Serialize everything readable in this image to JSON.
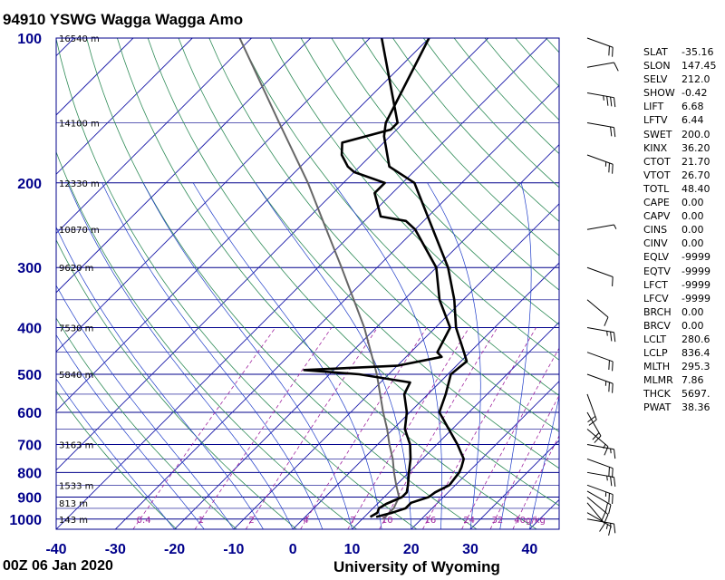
{
  "title": "94910 YSWG Wagga Wagga Amo",
  "footer": {
    "time": "00Z 06 Jan 2020",
    "source": "University of Wyoming"
  },
  "chart_data": {
    "type": "skew-t log-p",
    "pressure_ticks": [
      100,
      200,
      300,
      400,
      500,
      600,
      700,
      800,
      900,
      1000
    ],
    "temperature_ticks": [
      -40,
      -30,
      -20,
      -10,
      0,
      10,
      20,
      30,
      40
    ],
    "height_labels": [
      {
        "p": 100,
        "label": "16540 m"
      },
      {
        "p": 150,
        "label": "14100 m"
      },
      {
        "p": 200,
        "label": "12330 m"
      },
      {
        "p": 250,
        "label": "10870 m"
      },
      {
        "p": 300,
        "label": "9620 m"
      },
      {
        "p": 400,
        "label": "7530 m"
      },
      {
        "p": 500,
        "label": "5840 m"
      },
      {
        "p": 700,
        "label": "3163 m"
      },
      {
        "p": 850,
        "label": "1533 m"
      },
      {
        "p": 925,
        "label": "813 m"
      },
      {
        "p": 1000,
        "label": "143 m"
      }
    ],
    "mixing_ratio_labels": [
      "0.4",
      "1",
      "2",
      "4",
      "7",
      "10",
      "16",
      "24",
      "32",
      "40g/kg"
    ],
    "temperature_profile": [
      {
        "p": 990,
        "t": 12.0
      },
      {
        "p": 970,
        "t": 14.0
      },
      {
        "p": 950,
        "t": 15.5
      },
      {
        "p": 925,
        "t": 15.5
      },
      {
        "p": 900,
        "t": 17.5
      },
      {
        "p": 880,
        "t": 17.8
      },
      {
        "p": 850,
        "t": 19.0
      },
      {
        "p": 800,
        "t": 18.5
      },
      {
        "p": 780,
        "t": 18.0
      },
      {
        "p": 750,
        "t": 17.0
      },
      {
        "p": 700,
        "t": 13.5
      },
      {
        "p": 600,
        "t": 5.0
      },
      {
        "p": 550,
        "t": 3.0
      },
      {
        "p": 500,
        "t": 0.5
      },
      {
        "p": 470,
        "t": 1.0
      },
      {
        "p": 450,
        "t": -1.0
      },
      {
        "p": 400,
        "t": -6.5
      },
      {
        "p": 350,
        "t": -11.5
      },
      {
        "p": 300,
        "t": -18.0
      },
      {
        "p": 250,
        "t": -27.0
      },
      {
        "p": 200,
        "t": -38.0
      },
      {
        "p": 185,
        "t": -45.0
      },
      {
        "p": 160,
        "t": -51.0
      },
      {
        "p": 150,
        "t": -53.0
      },
      {
        "p": 100,
        "t": -60.0
      }
    ],
    "dewpoint_profile": [
      {
        "p": 990,
        "t": 11.0
      },
      {
        "p": 970,
        "t": 11.5
      },
      {
        "p": 950,
        "t": 11.0
      },
      {
        "p": 930,
        "t": 11.5
      },
      {
        "p": 900,
        "t": 13.0
      },
      {
        "p": 880,
        "t": 13.0
      },
      {
        "p": 850,
        "t": 12.0
      },
      {
        "p": 800,
        "t": 10.0
      },
      {
        "p": 750,
        "t": 8.0
      },
      {
        "p": 700,
        "t": 5.5
      },
      {
        "p": 650,
        "t": 2.0
      },
      {
        "p": 600,
        "t": -0.5
      },
      {
        "p": 550,
        "t": -4.0
      },
      {
        "p": 520,
        "t": -5.0
      },
      {
        "p": 500,
        "t": -15.0
      },
      {
        "p": 490,
        "t": -25.0
      },
      {
        "p": 480,
        "t": -10.0
      },
      {
        "p": 460,
        "t": -4.0
      },
      {
        "p": 450,
        "t": -5.5
      },
      {
        "p": 400,
        "t": -7.5
      },
      {
        "p": 350,
        "t": -14.0
      },
      {
        "p": 300,
        "t": -20.0
      },
      {
        "p": 250,
        "t": -30.0
      },
      {
        "p": 240,
        "t": -33.0
      },
      {
        "p": 235,
        "t": -38.0
      },
      {
        "p": 210,
        "t": -43.0
      },
      {
        "p": 200,
        "t": -43.0
      },
      {
        "p": 190,
        "t": -50.0
      },
      {
        "p": 185,
        "t": -52.0
      },
      {
        "p": 175,
        "t": -55.0
      },
      {
        "p": 165,
        "t": -57.0
      },
      {
        "p": 155,
        "t": -51.0
      },
      {
        "p": 150,
        "t": -51.0
      },
      {
        "p": 100,
        "t": -68.0
      }
    ],
    "parcel_profile": [
      {
        "p": 1000,
        "t": 13.5
      },
      {
        "p": 950,
        "t": 13.5
      },
      {
        "p": 900,
        "t": 12.5
      },
      {
        "p": 850,
        "t": 10.0
      },
      {
        "p": 800,
        "t": 7.5
      },
      {
        "p": 750,
        "t": 5.0
      },
      {
        "p": 700,
        "t": 2.0
      },
      {
        "p": 650,
        "t": -1.0
      },
      {
        "p": 600,
        "t": -4.5
      },
      {
        "p": 500,
        "t": -12.0
      },
      {
        "p": 400,
        "t": -22.0
      },
      {
        "p": 300,
        "t": -36.0
      },
      {
        "p": 250,
        "t": -45.0
      },
      {
        "p": 200,
        "t": -56.0
      },
      {
        "p": 150,
        "t": -71.0
      },
      {
        "p": 100,
        "t": -92.0
      }
    ],
    "wind_barbs": [
      {
        "p": 1000,
        "dir": 100,
        "spd": 15
      },
      {
        "p": 970,
        "dir": 120,
        "spd": 15
      },
      {
        "p": 925,
        "dir": 140,
        "spd": 10
      },
      {
        "p": 900,
        "dir": 130,
        "spd": 20
      },
      {
        "p": 875,
        "dir": 120,
        "spd": 20
      },
      {
        "p": 850,
        "dir": 110,
        "spd": 25
      },
      {
        "p": 800,
        "dir": 100,
        "spd": 25
      },
      {
        "p": 750,
        "dir": 110,
        "spd": 20
      },
      {
        "p": 700,
        "dir": 100,
        "spd": 15
      },
      {
        "p": 650,
        "dir": 130,
        "spd": 15
      },
      {
        "p": 600,
        "dir": 150,
        "spd": 20
      },
      {
        "p": 550,
        "dir": 160,
        "spd": 20
      },
      {
        "p": 500,
        "dir": 110,
        "spd": 25
      },
      {
        "p": 450,
        "dir": 110,
        "spd": 20
      },
      {
        "p": 400,
        "dir": 100,
        "spd": 25
      },
      {
        "p": 350,
        "dir": 130,
        "spd": 10
      },
      {
        "p": 300,
        "dir": 110,
        "spd": 10
      },
      {
        "p": 250,
        "dir": 80,
        "spd": 5
      },
      {
        "p": 175,
        "dir": 110,
        "spd": 25
      },
      {
        "p": 150,
        "dir": 100,
        "spd": 20
      },
      {
        "p": 130,
        "dir": 100,
        "spd": 35
      },
      {
        "p": 115,
        "dir": 80,
        "spd": 10
      },
      {
        "p": 100,
        "dir": 110,
        "spd": 20
      }
    ]
  },
  "params": [
    {
      "key": "SLAT",
      "value": "-35.16"
    },
    {
      "key": "SLON",
      "value": "147.45"
    },
    {
      "key": "SELV",
      "value": "212.0"
    },
    {
      "key": "SHOW",
      "value": "-0.42"
    },
    {
      "key": "LIFT",
      "value": "6.68"
    },
    {
      "key": "LFTV",
      "value": "6.44"
    },
    {
      "key": "SWET",
      "value": "200.0"
    },
    {
      "key": "KINX",
      "value": "36.20"
    },
    {
      "key": "CTOT",
      "value": "21.70"
    },
    {
      "key": "VTOT",
      "value": "26.70"
    },
    {
      "key": "TOTL",
      "value": "48.40"
    },
    {
      "key": "CAPE",
      "value": "0.00"
    },
    {
      "key": "CAPV",
      "value": "0.00"
    },
    {
      "key": "CINS",
      "value": "0.00"
    },
    {
      "key": "CINV",
      "value": "0.00"
    },
    {
      "key": "EQLV",
      "value": "-9999"
    },
    {
      "key": "EQTV",
      "value": "-9999"
    },
    {
      "key": "LFCT",
      "value": "-9999"
    },
    {
      "key": "LFCV",
      "value": "-9999"
    },
    {
      "key": "BRCH",
      "value": "0.00"
    },
    {
      "key": "BRCV",
      "value": "0.00"
    },
    {
      "key": "LCLT",
      "value": "280.6"
    },
    {
      "key": "LCLP",
      "value": "836.4"
    },
    {
      "key": "MLTH",
      "value": "295.3"
    },
    {
      "key": "MLMR",
      "value": "7.86"
    },
    {
      "key": "THCK",
      "value": "5697."
    },
    {
      "key": "PWAT",
      "value": "38.36"
    }
  ],
  "colors": {
    "isobar": "#00008b",
    "isotherm": "#1a1aa8",
    "dry_adiabat": "#2e8b57",
    "moist_adiabat": "#1e3cc8",
    "mixing_ratio": "#a0249e",
    "profile": "#000000",
    "parcel": "#666666",
    "axis_text": "#00008b"
  }
}
